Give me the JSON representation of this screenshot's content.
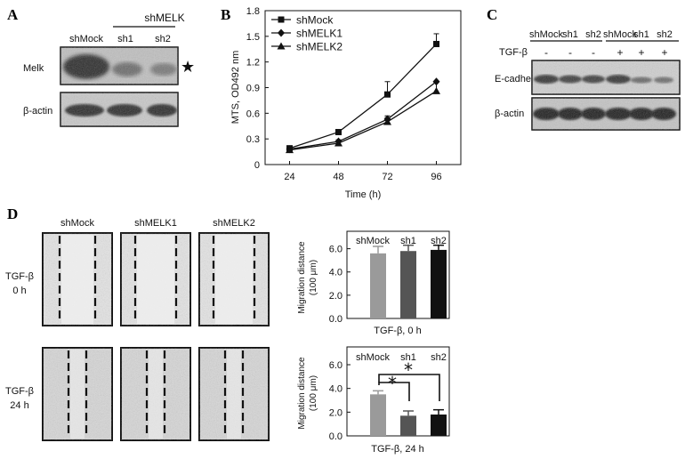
{
  "panels": {
    "A": {
      "label": "A",
      "group_label": "shMELK",
      "lane_labels": [
        "shMock",
        "sh1",
        "sh2"
      ],
      "row_labels": [
        "Melk",
        "β-actin"
      ],
      "marker": "★"
    },
    "B": {
      "label": "B",
      "chart_data": {
        "type": "line",
        "x": [
          24,
          48,
          72,
          96
        ],
        "xlabel": "Time (h)",
        "ylabel": "MTS, OD492 nm",
        "xticks": [
          "24",
          "48",
          "72",
          "96"
        ],
        "yticks": [
          "0",
          "0.3",
          "0.6",
          "0.9",
          "1.2",
          "1.5",
          "1.8"
        ],
        "ylim": [
          0,
          1.8
        ],
        "grid": false,
        "legend": "top-left",
        "series": [
          {
            "name": "shMock",
            "marker": "square",
            "values": [
              0.19,
              0.38,
              0.82,
              1.41
            ],
            "errors": [
              0.03,
              0.02,
              0.15,
              0.12
            ]
          },
          {
            "name": "shMELK1",
            "marker": "diamond",
            "values": [
              0.18,
              0.27,
              0.53,
              0.97
            ],
            "errors": [
              0.02,
              0.02,
              0.04,
              0.0
            ]
          },
          {
            "name": "shMELK2",
            "marker": "triangle",
            "values": [
              0.17,
              0.25,
              0.5,
              0.86
            ],
            "errors": [
              0.02,
              0.02,
              0.05,
              0.1
            ]
          }
        ]
      }
    },
    "C": {
      "label": "C",
      "lane_labels": [
        "shMock",
        "sh1",
        "sh2",
        "shMock",
        "sh1",
        "sh2"
      ],
      "treatment_label": "TGF-β",
      "treatment_signs": [
        "-",
        "-",
        "-",
        "+",
        "+",
        "+"
      ],
      "row_labels": [
        "E-cadherin",
        "β-actin"
      ]
    },
    "D": {
      "label": "D",
      "column_labels": [
        "shMock",
        "shMELK1",
        "shMELK2"
      ],
      "row_labels": [
        {
          "line1": "TGF-β",
          "line2": "0 h"
        },
        {
          "line1": "TGF-β",
          "line2": "24 h"
        }
      ],
      "chart_data": [
        {
          "type": "bar",
          "categories": [
            "shMock",
            "sh1",
            "sh2"
          ],
          "values": [
            5.6,
            5.8,
            5.9
          ],
          "errors": [
            0.6,
            0.5,
            0.4
          ],
          "colors": [
            "#9a9a9a",
            "#555555",
            "#111111"
          ],
          "ylabel": "Migration distance",
          "ylabel_unit": "(100 μm)",
          "xlabel": "TGF-β, 0 h",
          "yticks": [
            "0.0",
            "2.0",
            "4.0",
            "6.0"
          ],
          "ylim": [
            0,
            7.5
          ]
        },
        {
          "type": "bar",
          "categories": [
            "shMock",
            "sh1",
            "sh2"
          ],
          "values": [
            3.5,
            1.7,
            1.8
          ],
          "errors": [
            0.3,
            0.4,
            0.4
          ],
          "colors": [
            "#9a9a9a",
            "#555555",
            "#111111"
          ],
          "ylabel": "Migration distance",
          "ylabel_unit": "(100 μm)",
          "xlabel": "TGF-β, 24 h",
          "yticks": [
            "0.0",
            "2.0",
            "4.0",
            "6.0"
          ],
          "ylim": [
            0,
            7.5
          ],
          "significance_marker": "*"
        }
      ]
    }
  }
}
